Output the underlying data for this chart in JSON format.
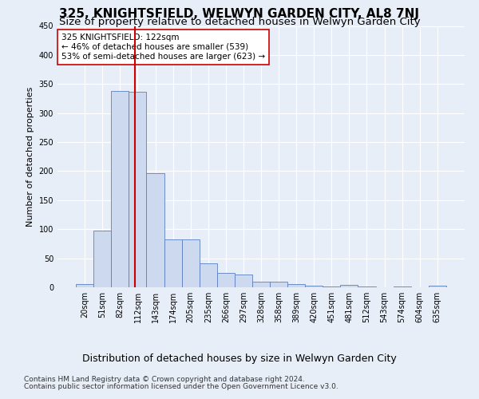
{
  "title": "325, KNIGHTSFIELD, WELWYN GARDEN CITY, AL8 7NJ",
  "subtitle": "Size of property relative to detached houses in Welwyn Garden City",
  "xlabel": "Distribution of detached houses by size in Welwyn Garden City",
  "ylabel": "Number of detached properties",
  "categories": [
    "20sqm",
    "51sqm",
    "82sqm",
    "112sqm",
    "143sqm",
    "174sqm",
    "205sqm",
    "235sqm",
    "266sqm",
    "297sqm",
    "328sqm",
    "358sqm",
    "389sqm",
    "420sqm",
    "451sqm",
    "481sqm",
    "512sqm",
    "543sqm",
    "574sqm",
    "604sqm",
    "635sqm"
  ],
  "values": [
    5,
    97,
    338,
    336,
    197,
    82,
    82,
    41,
    25,
    22,
    10,
    9,
    5,
    3,
    1,
    4,
    1,
    0,
    1,
    0,
    3
  ],
  "bar_color": "#ccd9ee",
  "bar_edge_color": "#5b7fbf",
  "ref_line_x": 2.85,
  "ref_line_color": "#cc0000",
  "annotation_text": "325 KNIGHTSFIELD: 122sqm\n← 46% of detached houses are smaller (539)\n53% of semi-detached houses are larger (623) →",
  "annotation_box_color": "#ffffff",
  "annotation_box_edge": "#cc0000",
  "footnote1": "Contains HM Land Registry data © Crown copyright and database right 2024.",
  "footnote2": "Contains public sector information licensed under the Open Government Licence v3.0.",
  "ylim": [
    0,
    450
  ],
  "title_fontsize": 11,
  "subtitle_fontsize": 9.5,
  "xlabel_fontsize": 9,
  "ylabel_fontsize": 8,
  "tick_fontsize": 7,
  "annot_fontsize": 7.5,
  "footnote_fontsize": 6.5,
  "bg_color": "#e8eef8"
}
